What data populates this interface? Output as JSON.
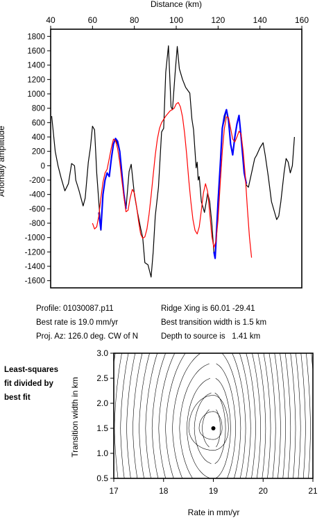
{
  "chart_data": [
    {
      "type": "line",
      "title": "",
      "xlabel": "Distance (km)",
      "ylabel": "Anomaly amplitude",
      "xlim": [
        40,
        160
      ],
      "ylim": [
        -1700,
        1900
      ],
      "xticks": [
        40,
        60,
        80,
        100,
        120,
        140,
        160
      ],
      "yticks": [
        -1600,
        -1400,
        -1200,
        -1000,
        -800,
        -600,
        -400,
        -200,
        0,
        200,
        400,
        600,
        800,
        1000,
        1200,
        1400,
        1600,
        1800
      ],
      "x_axis_position": "top",
      "grid": false,
      "series": [
        {
          "color": "#000000",
          "points": [
            [
              40.5,
              690
            ],
            [
              42.2,
              200
            ],
            [
              43.5,
              0
            ],
            [
              45,
              -170
            ],
            [
              46.8,
              -350
            ],
            [
              48.5,
              -250
            ],
            [
              50,
              30
            ],
            [
              51.4,
              0
            ],
            [
              52,
              -200
            ],
            [
              53.5,
              -340
            ],
            [
              55.5,
              -560
            ],
            [
              56.5,
              -450
            ],
            [
              58,
              50
            ],
            [
              59,
              250
            ],
            [
              60,
              550
            ],
            [
              61,
              500
            ],
            [
              61.5,
              200
            ],
            [
              62,
              -100
            ],
            [
              63,
              -500
            ],
            [
              64,
              -900
            ],
            [
              65,
              -400
            ],
            [
              66,
              -200
            ],
            [
              67,
              -100
            ],
            [
              68,
              -150
            ],
            [
              69,
              100
            ],
            [
              70,
              300
            ],
            [
              71,
              380
            ],
            [
              72,
              300
            ],
            [
              73,
              200
            ],
            [
              74,
              -100
            ],
            [
              75,
              -400
            ],
            [
              76,
              -600
            ],
            [
              77,
              -250
            ],
            [
              77.5,
              -80
            ],
            [
              78.5,
              20
            ],
            [
              80,
              -400
            ],
            [
              81.5,
              -650
            ],
            [
              83,
              -870
            ],
            [
              84,
              -1000
            ],
            [
              85,
              -1350
            ],
            [
              86.5,
              -1380
            ],
            [
              88,
              -1550
            ],
            [
              89,
              -1200
            ],
            [
              90,
              -700
            ],
            [
              91.5,
              -300
            ],
            [
              93,
              470
            ],
            [
              94,
              520
            ],
            [
              95,
              1300
            ],
            [
              96.3,
              1670
            ],
            [
              97.5,
              820
            ],
            [
              98.2,
              780
            ],
            [
              99.5,
              1300
            ],
            [
              100.5,
              1660
            ],
            [
              101.5,
              1350
            ],
            [
              103,
              1200
            ],
            [
              104.5,
              1090
            ],
            [
              106.5,
              1010
            ],
            [
              107.5,
              650
            ],
            [
              108.3,
              500
            ],
            [
              109,
              200
            ],
            [
              109.5,
              -30
            ],
            [
              110,
              50
            ],
            [
              110.5,
              -200
            ],
            [
              111,
              -150
            ],
            [
              112,
              -500
            ],
            [
              113.5,
              -650
            ],
            [
              114.5,
              -480
            ],
            [
              115,
              -380
            ],
            [
              116,
              -500
            ],
            [
              117,
              -800
            ],
            [
              118,
              -1200
            ],
            [
              118.6,
              -1280
            ],
            [
              120,
              -500
            ],
            [
              121,
              0
            ],
            [
              122,
              520
            ],
            [
              123,
              630
            ],
            [
              124,
              780
            ],
            [
              125,
              630
            ],
            [
              126,
              300
            ],
            [
              127,
              150
            ],
            [
              128,
              400
            ],
            [
              129,
              580
            ],
            [
              130,
              700
            ],
            [
              131,
              400
            ],
            [
              132.5,
              -100
            ],
            [
              133.5,
              -270
            ],
            [
              134.5,
              -300
            ],
            [
              136,
              -100
            ],
            [
              137.5,
              100
            ],
            [
              138.5,
              150
            ],
            [
              140,
              250
            ],
            [
              141.5,
              320
            ],
            [
              142.5,
              150
            ],
            [
              144,
              -150
            ],
            [
              145.5,
              -500
            ],
            [
              147,
              -650
            ],
            [
              148,
              -750
            ],
            [
              149,
              -700
            ],
            [
              150,
              -500
            ],
            [
              151.5,
              -100
            ],
            [
              152.5,
              100
            ],
            [
              153.5,
              50
            ],
            [
              154.5,
              -100
            ],
            [
              155.5,
              0
            ],
            [
              156.5,
              400
            ]
          ]
        },
        {
          "color": "#0000ff",
          "points": [
            [
              63,
              -650
            ],
            [
              64,
              -890
            ],
            [
              65,
              -400
            ],
            [
              66,
              -200
            ],
            [
              67,
              -100
            ],
            [
              68,
              -150
            ],
            [
              69,
              100
            ],
            [
              70,
              300
            ],
            [
              71,
              380
            ],
            [
              72,
              340
            ],
            [
              73,
              200
            ],
            [
              74,
              -100
            ],
            [
              75,
              -400
            ],
            [
              76,
              -600
            ],
            [
              118,
              -1200
            ],
            [
              118.6,
              -1290
            ],
            [
              120,
              -500
            ],
            [
              121,
              0
            ],
            [
              122,
              520
            ],
            [
              123,
              690
            ],
            [
              124,
              780
            ],
            [
              125,
              630
            ],
            [
              126,
              300
            ],
            [
              127,
              150
            ],
            [
              128,
              400
            ],
            [
              129,
              580
            ],
            [
              130,
              700
            ],
            [
              131,
              400
            ],
            [
              132.5,
              -100
            ],
            [
              133.5,
              -250
            ]
          ]
        },
        {
          "color": "#ff0000",
          "points": [
            [
              60,
              -800
            ],
            [
              61,
              -880
            ],
            [
              62,
              -850
            ],
            [
              63,
              -700
            ],
            [
              64,
              -450
            ],
            [
              65,
              -230
            ],
            [
              66,
              -100
            ],
            [
              67,
              -50
            ],
            [
              68,
              100
            ],
            [
              69,
              250
            ],
            [
              70,
              370
            ],
            [
              71,
              350
            ],
            [
              72,
              240
            ],
            [
              73,
              50
            ],
            [
              74,
              -200
            ],
            [
              75,
              -430
            ],
            [
              76,
              -640
            ],
            [
              77,
              -620
            ],
            [
              78,
              -450
            ],
            [
              79,
              -330
            ],
            [
              80,
              -380
            ],
            [
              81,
              -560
            ],
            [
              82,
              -770
            ],
            [
              83,
              -950
            ],
            [
              84,
              -1010
            ],
            [
              85,
              -990
            ],
            [
              86,
              -880
            ],
            [
              87,
              -680
            ],
            [
              88,
              -420
            ],
            [
              89,
              -130
            ],
            [
              90,
              150
            ],
            [
              91,
              370
            ],
            [
              92,
              520
            ],
            [
              93,
              600
            ],
            [
              95,
              690
            ],
            [
              97,
              760
            ],
            [
              99,
              800
            ],
            [
              100,
              860
            ],
            [
              101,
              880
            ],
            [
              102,
              820
            ],
            [
              103,
              680
            ],
            [
              104,
              450
            ],
            [
              105,
              150
            ],
            [
              106,
              -200
            ],
            [
              107,
              -500
            ],
            [
              108,
              -750
            ],
            [
              109,
              -900
            ],
            [
              110,
              -950
            ],
            [
              111,
              -850
            ],
            [
              112,
              -620
            ],
            [
              113,
              -380
            ],
            [
              114,
              -250
            ],
            [
              115,
              -360
            ],
            [
              116,
              -660
            ],
            [
              117,
              -980
            ],
            [
              118,
              -1140
            ],
            [
              119,
              -1050
            ],
            [
              120,
              -750
            ],
            [
              121,
              -250
            ],
            [
              122,
              200
            ],
            [
              123,
              520
            ],
            [
              124,
              680
            ],
            [
              125,
              670
            ],
            [
              126,
              520
            ],
            [
              127,
              370
            ],
            [
              128,
              330
            ],
            [
              129,
              400
            ],
            [
              130,
              480
            ],
            [
              131,
              440
            ],
            [
              132,
              200
            ],
            [
              133,
              -150
            ],
            [
              134,
              -600
            ],
            [
              135,
              -1000
            ],
            [
              136,
              -1280
            ]
          ]
        }
      ]
    },
    {
      "type": "contour",
      "title": "",
      "xlabel": "Rate in mm/yr",
      "ylabel": "Transition width in km",
      "xlim": [
        17,
        21
      ],
      "ylim": [
        0.5,
        3.0
      ],
      "xticks": [
        17,
        18,
        19,
        20,
        21
      ],
      "yticks": [
        0.5,
        1.0,
        1.5,
        2.0,
        2.5,
        3.0
      ],
      "grid": false,
      "best_fit_point": [
        19.0,
        1.5
      ]
    }
  ],
  "info": {
    "profile": "Profile: 01030087.p11",
    "ridge_xing": "Ridge Xing is 60.01 -29.41",
    "best_rate": "Best rate is 19.0 mm/yr",
    "best_transition": "Best transition width is 1.5 km",
    "proj_az": "Proj. Az: 126.0 deg. CW of N",
    "depth": "Depth to source is   1.41 km"
  },
  "side_label": "Least-squares\nfit divided by\nbest fit"
}
